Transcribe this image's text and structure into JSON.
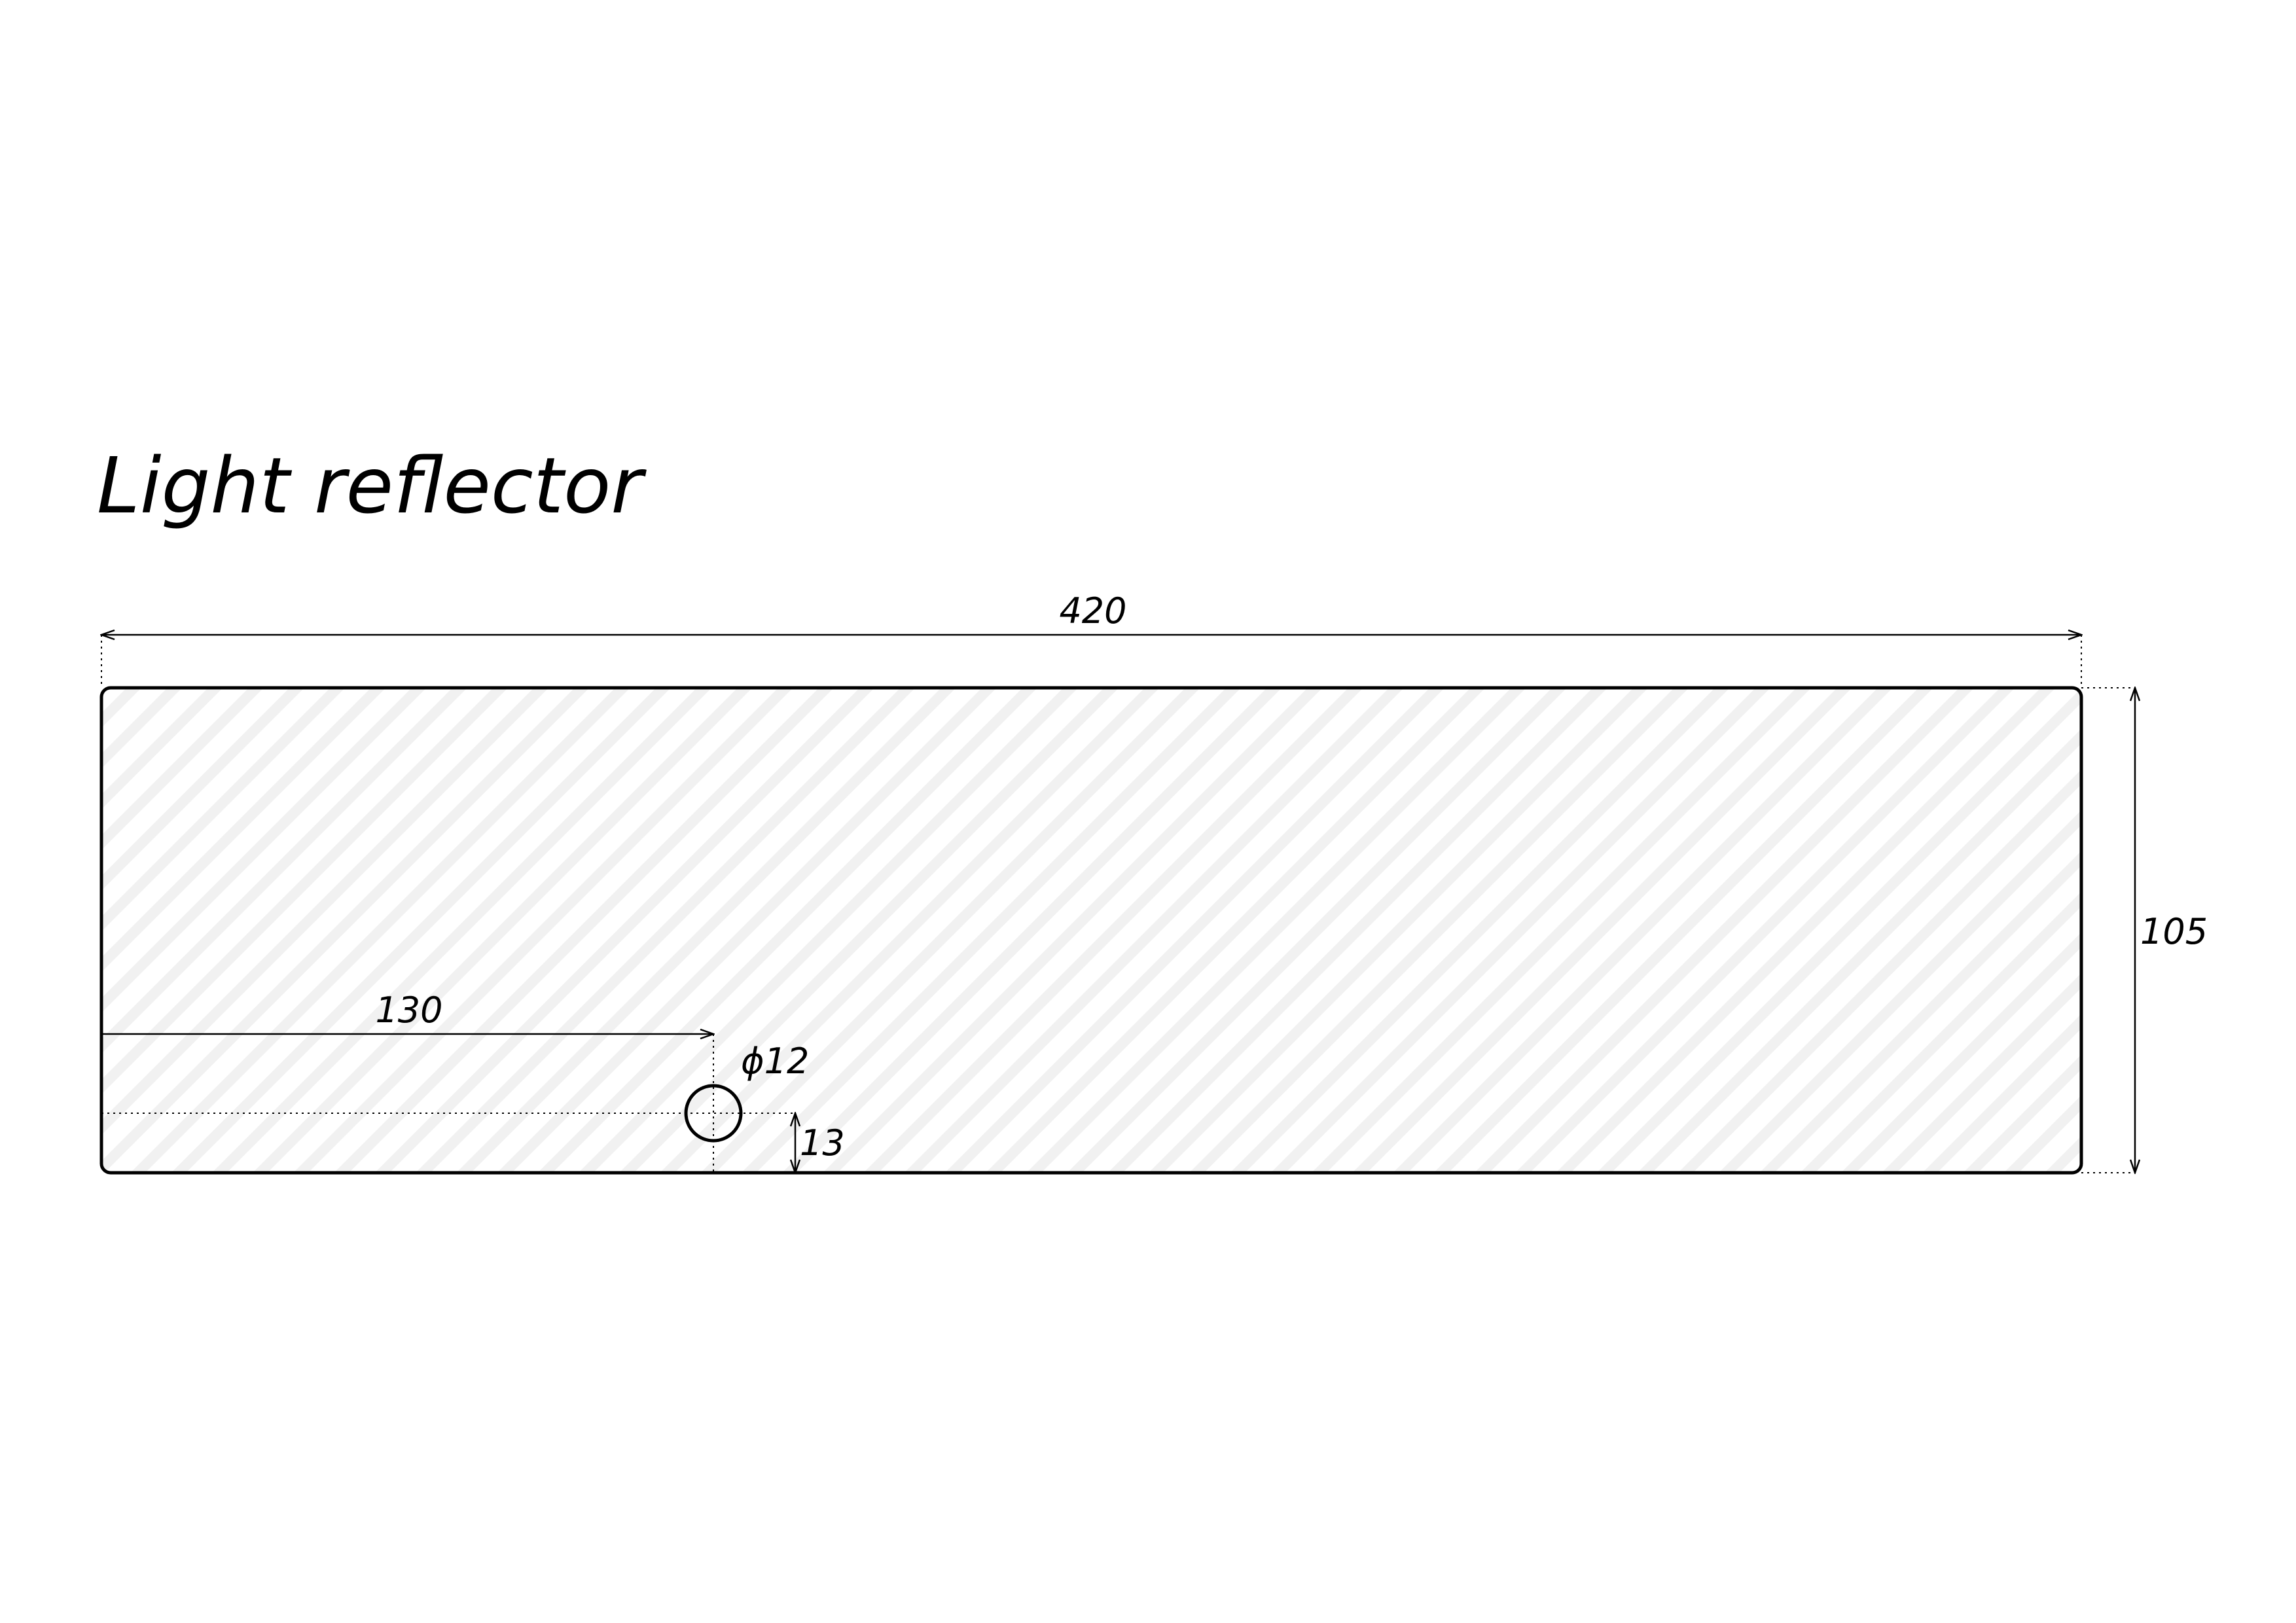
{
  "title": "Light reflector",
  "dimensions": {
    "overall_width": "420",
    "overall_height": "105",
    "hole_offset_x": "130",
    "hole_diameter": "ϕ12",
    "hole_offset_y": "13"
  },
  "colors": {
    "line": "#000000",
    "hatch": "#eeeeee",
    "background": "#ffffff"
  }
}
